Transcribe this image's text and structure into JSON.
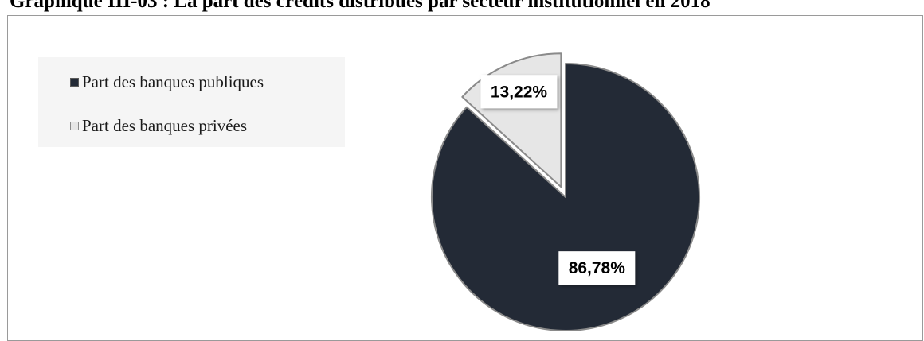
{
  "chart_data": {
    "type": "pie",
    "title": "Graphique III-03 : La part des crédits distribués par secteur institutionnel en 2018",
    "slices": [
      {
        "label": "Part des banques publiques",
        "value": 86.78,
        "display": "86,78%",
        "color": "#232a36",
        "exploded": false
      },
      {
        "label": "Part des banques privées",
        "value": 13.22,
        "display": "13,22%",
        "color": "#e6e6e6",
        "exploded": true
      }
    ],
    "legend_position": "left",
    "slice_border_color": "#8a8a8a"
  }
}
